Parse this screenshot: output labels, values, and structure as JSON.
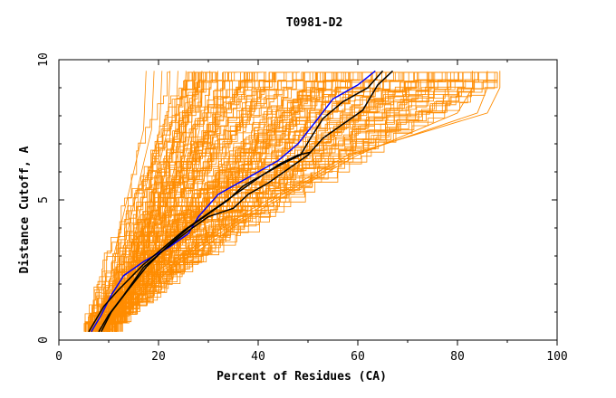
{
  "chart_data": {
    "type": "line",
    "title": "T0981-D2",
    "xlabel": "Percent of Residues (CA)",
    "ylabel": "Distance Cutoff, A",
    "xlim": [
      0,
      100
    ],
    "ylim": [
      0,
      10
    ],
    "x_ticks": [
      0,
      20,
      40,
      60,
      80,
      100
    ],
    "x_tick_labels": [
      "0",
      "20",
      "40",
      "60",
      "80",
      "100"
    ],
    "y_ticks": [
      0,
      5,
      10
    ],
    "y_tick_labels": [
      "0",
      "5",
      "10"
    ],
    "grid": false,
    "legend": "none",
    "colors": {
      "background_models": "#ff8c00",
      "highlight_blue": "#0000ff",
      "highlight_black": "#000000",
      "axes": "#000000"
    },
    "series": [
      {
        "color": "#0000ff",
        "x": [
          6.5,
          8.5,
          10.5,
          13,
          17,
          22,
          26,
          28,
          32,
          38,
          44,
          48,
          52,
          55,
          60,
          63.5
        ],
        "y": [
          0.3,
          0.9,
          1.6,
          2.3,
          2.8,
          3.3,
          3.8,
          4.4,
          5.2,
          5.8,
          6.4,
          7.0,
          7.9,
          8.6,
          9.1,
          9.6
        ]
      },
      {
        "color": "#000000",
        "x": [
          6,
          9,
          12,
          17,
          21,
          25,
          29,
          33,
          37,
          41,
          45,
          48.5,
          50.5,
          53,
          57,
          62,
          65
        ],
        "y": [
          0.3,
          1.2,
          1.8,
          2.7,
          3.3,
          3.9,
          4.4,
          4.9,
          5.4,
          5.9,
          6.3,
          6.6,
          7.2,
          7.9,
          8.5,
          9.0,
          9.6
        ]
      },
      {
        "color": "#000000",
        "x": [
          8,
          10,
          13,
          17,
          21,
          26,
          30,
          35,
          38,
          42,
          46,
          50,
          53,
          57,
          61,
          64,
          67
        ],
        "y": [
          0.3,
          0.9,
          1.6,
          2.6,
          3.2,
          3.9,
          4.4,
          4.7,
          5.2,
          5.6,
          6.1,
          6.6,
          7.2,
          7.7,
          8.2,
          9.1,
          9.6
        ]
      },
      {
        "color": "#000000",
        "x": [
          8.5,
          10.5,
          13.5,
          17.5,
          21.5,
          26,
          30,
          34,
          37,
          41,
          44.5,
          48,
          50.5
        ],
        "y": [
          0.3,
          1.0,
          1.7,
          2.6,
          3.3,
          4.0,
          4.5,
          5.0,
          5.5,
          5.9,
          6.3,
          6.6,
          6.7
        ]
      }
    ]
  }
}
